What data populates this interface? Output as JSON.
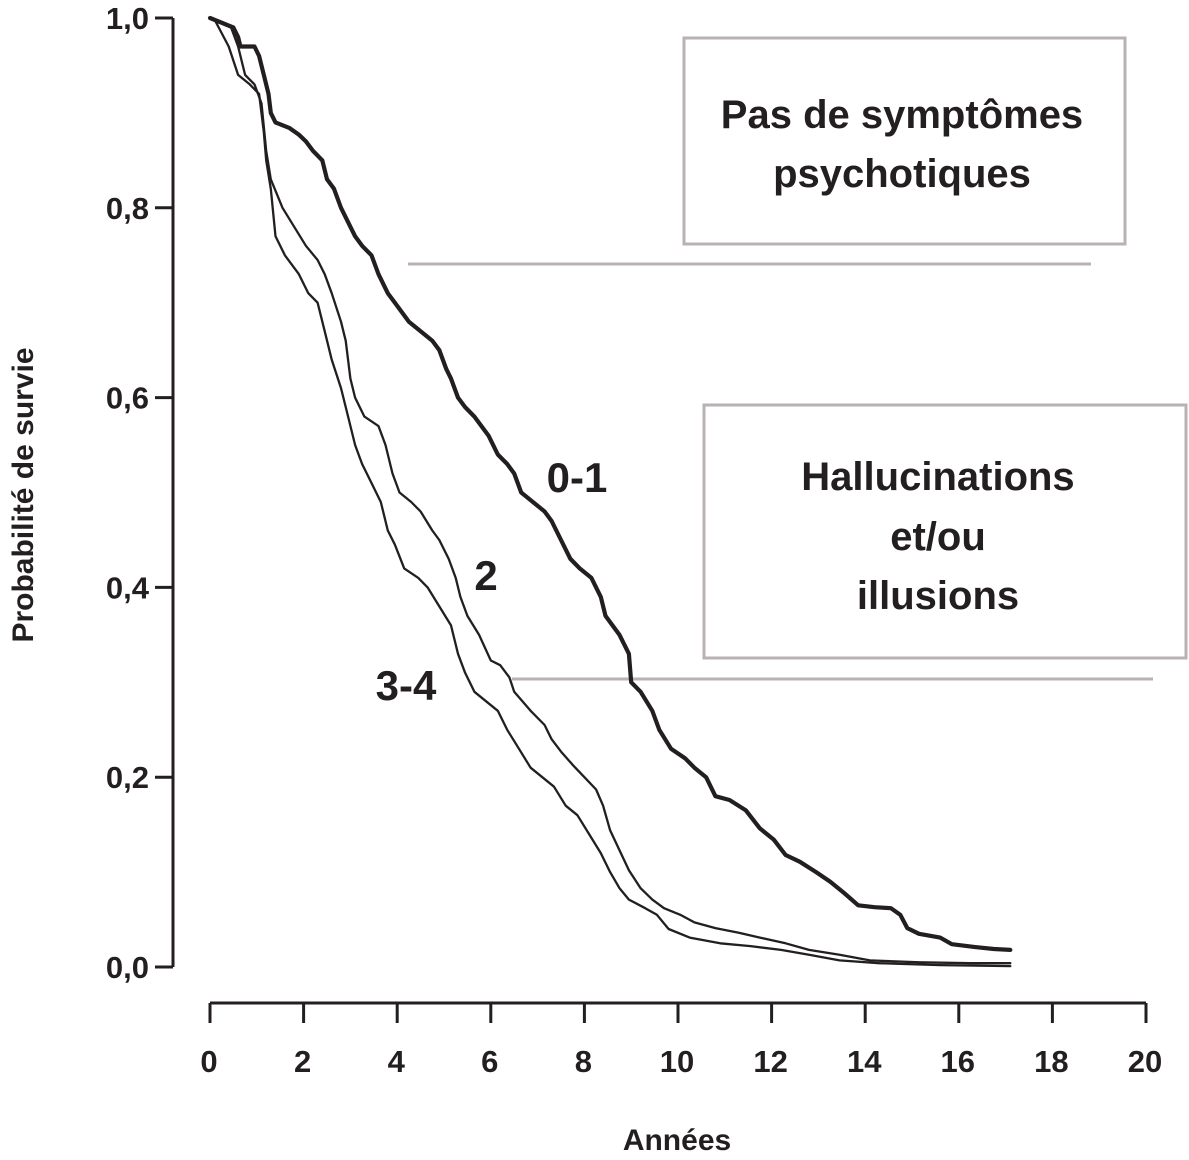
{
  "chart_data": {
    "type": "line",
    "xlabel": "Années",
    "ylabel": "Probabilité de survie",
    "xlim": [
      0,
      20
    ],
    "ylim": [
      0,
      1
    ],
    "x_ticks": [
      0,
      2,
      4,
      6,
      8,
      10,
      12,
      14,
      16,
      18,
      20
    ],
    "x_tick_labels": [
      "0",
      "2",
      "4",
      "6",
      "8",
      "10",
      "12",
      "14",
      "16",
      "18",
      "20"
    ],
    "y_ticks": [
      0,
      0.2,
      0.4,
      0.6,
      0.8,
      1.0
    ],
    "y_tick_labels": [
      "0,0",
      "0,2",
      "0,4",
      "0,6",
      "0,8",
      "1,0"
    ],
    "grid": false,
    "colors": {
      "curves": "#231f20",
      "annotation_frames": "#b9b1b6"
    },
    "series": [
      {
        "name": "0-1",
        "points": [
          [
            0,
            1.0
          ],
          [
            0.5,
            0.99
          ],
          [
            0.6,
            0.98
          ],
          [
            0.65,
            0.97
          ],
          [
            0.95,
            0.97
          ],
          [
            1.05,
            0.96
          ],
          [
            1.15,
            0.94
          ],
          [
            1.25,
            0.92
          ],
          [
            1.3,
            0.9
          ],
          [
            1.4,
            0.89
          ],
          [
            1.7,
            0.884
          ],
          [
            1.9,
            0.877
          ],
          [
            2.05,
            0.87
          ],
          [
            2.2,
            0.86
          ],
          [
            2.4,
            0.85
          ],
          [
            2.5,
            0.83
          ],
          [
            2.65,
            0.82
          ],
          [
            2.8,
            0.8
          ],
          [
            3.0,
            0.78
          ],
          [
            3.1,
            0.77
          ],
          [
            3.25,
            0.76
          ],
          [
            3.45,
            0.75
          ],
          [
            3.6,
            0.73
          ],
          [
            3.8,
            0.71
          ],
          [
            3.95,
            0.7
          ],
          [
            4.1,
            0.69
          ],
          [
            4.25,
            0.68
          ],
          [
            4.5,
            0.67
          ],
          [
            4.75,
            0.66
          ],
          [
            4.9,
            0.65
          ],
          [
            5.05,
            0.63
          ],
          [
            5.15,
            0.62
          ],
          [
            5.3,
            0.6
          ],
          [
            5.45,
            0.59
          ],
          [
            5.65,
            0.58
          ],
          [
            5.95,
            0.56
          ],
          [
            6.15,
            0.54
          ],
          [
            6.35,
            0.53
          ],
          [
            6.5,
            0.52
          ],
          [
            6.65,
            0.5
          ],
          [
            6.9,
            0.49
          ],
          [
            7.15,
            0.48
          ],
          [
            7.3,
            0.47
          ],
          [
            7.5,
            0.45
          ],
          [
            7.7,
            0.43
          ],
          [
            7.9,
            0.42
          ],
          [
            8.15,
            0.41
          ],
          [
            8.35,
            0.39
          ],
          [
            8.45,
            0.37
          ],
          [
            8.6,
            0.36
          ],
          [
            8.75,
            0.35
          ],
          [
            8.95,
            0.33
          ],
          [
            9.0,
            0.3
          ],
          [
            9.2,
            0.29
          ],
          [
            9.45,
            0.27
          ],
          [
            9.6,
            0.25
          ],
          [
            9.85,
            0.23
          ],
          [
            10.15,
            0.22
          ],
          [
            10.35,
            0.21
          ],
          [
            10.6,
            0.2
          ],
          [
            10.8,
            0.18
          ],
          [
            11.1,
            0.176
          ],
          [
            11.45,
            0.165
          ],
          [
            11.75,
            0.146
          ],
          [
            12.05,
            0.134
          ],
          [
            12.3,
            0.118
          ],
          [
            12.6,
            0.111
          ],
          [
            12.95,
            0.1
          ],
          [
            13.25,
            0.09
          ],
          [
            13.55,
            0.078
          ],
          [
            13.85,
            0.065
          ],
          [
            14.2,
            0.063
          ],
          [
            14.55,
            0.062
          ],
          [
            14.75,
            0.055
          ],
          [
            14.9,
            0.041
          ],
          [
            15.15,
            0.035
          ],
          [
            15.6,
            0.031
          ],
          [
            15.85,
            0.024
          ],
          [
            16.35,
            0.021
          ],
          [
            16.75,
            0.019
          ],
          [
            17.1,
            0.018
          ]
        ]
      },
      {
        "name": "2",
        "points": [
          [
            0,
            1.0
          ],
          [
            0.45,
            0.99
          ],
          [
            0.6,
            0.97
          ],
          [
            0.75,
            0.94
          ],
          [
            0.95,
            0.93
          ],
          [
            1.1,
            0.91
          ],
          [
            1.2,
            0.86
          ],
          [
            1.3,
            0.83
          ],
          [
            1.55,
            0.8
          ],
          [
            1.8,
            0.78
          ],
          [
            2.05,
            0.76
          ],
          [
            2.3,
            0.745
          ],
          [
            2.45,
            0.73
          ],
          [
            2.6,
            0.71
          ],
          [
            2.8,
            0.68
          ],
          [
            2.9,
            0.66
          ],
          [
            3.0,
            0.62
          ],
          [
            3.1,
            0.6
          ],
          [
            3.3,
            0.58
          ],
          [
            3.6,
            0.57
          ],
          [
            3.75,
            0.55
          ],
          [
            3.9,
            0.52
          ],
          [
            4.05,
            0.5
          ],
          [
            4.3,
            0.49
          ],
          [
            4.5,
            0.48
          ],
          [
            4.75,
            0.46
          ],
          [
            4.9,
            0.45
          ],
          [
            5.1,
            0.43
          ],
          [
            5.25,
            0.41
          ],
          [
            5.35,
            0.39
          ],
          [
            5.5,
            0.37
          ],
          [
            5.75,
            0.35
          ],
          [
            6.0,
            0.323
          ],
          [
            6.2,
            0.318
          ],
          [
            6.4,
            0.305
          ],
          [
            6.5,
            0.29
          ],
          [
            6.85,
            0.27
          ],
          [
            7.15,
            0.255
          ],
          [
            7.3,
            0.24
          ],
          [
            7.5,
            0.227
          ],
          [
            7.75,
            0.213
          ],
          [
            8.0,
            0.2
          ],
          [
            8.25,
            0.187
          ],
          [
            8.4,
            0.17
          ],
          [
            8.55,
            0.144
          ],
          [
            8.75,
            0.123
          ],
          [
            8.95,
            0.102
          ],
          [
            9.2,
            0.083
          ],
          [
            9.45,
            0.071
          ],
          [
            9.7,
            0.062
          ],
          [
            10.05,
            0.055
          ],
          [
            10.35,
            0.047
          ],
          [
            10.8,
            0.041
          ],
          [
            11.3,
            0.036
          ],
          [
            11.75,
            0.031
          ],
          [
            12.3,
            0.025
          ],
          [
            12.8,
            0.018
          ],
          [
            13.45,
            0.013
          ],
          [
            14.1,
            0.007
          ],
          [
            15.15,
            0.005
          ],
          [
            16.25,
            0.004
          ],
          [
            17.1,
            0.004
          ]
        ]
      },
      {
        "name": "3-4",
        "points": [
          [
            0,
            1.0
          ],
          [
            0.1,
            0.998
          ],
          [
            0.4,
            0.97
          ],
          [
            0.6,
            0.94
          ],
          [
            0.85,
            0.93
          ],
          [
            1.05,
            0.92
          ],
          [
            1.15,
            0.88
          ],
          [
            1.2,
            0.85
          ],
          [
            1.3,
            0.82
          ],
          [
            1.4,
            0.77
          ],
          [
            1.6,
            0.75
          ],
          [
            1.9,
            0.73
          ],
          [
            2.1,
            0.71
          ],
          [
            2.3,
            0.7
          ],
          [
            2.45,
            0.67
          ],
          [
            2.6,
            0.64
          ],
          [
            2.8,
            0.61
          ],
          [
            2.95,
            0.58
          ],
          [
            3.1,
            0.55
          ],
          [
            3.25,
            0.53
          ],
          [
            3.45,
            0.51
          ],
          [
            3.65,
            0.49
          ],
          [
            3.8,
            0.46
          ],
          [
            3.95,
            0.445
          ],
          [
            4.15,
            0.42
          ],
          [
            4.45,
            0.41
          ],
          [
            4.65,
            0.4
          ],
          [
            4.9,
            0.38
          ],
          [
            5.15,
            0.36
          ],
          [
            5.3,
            0.33
          ],
          [
            5.45,
            0.31
          ],
          [
            5.65,
            0.29
          ],
          [
            5.9,
            0.28
          ],
          [
            6.15,
            0.27
          ],
          [
            6.35,
            0.25
          ],
          [
            6.6,
            0.23
          ],
          [
            6.85,
            0.21
          ],
          [
            7.1,
            0.2
          ],
          [
            7.35,
            0.19
          ],
          [
            7.6,
            0.17
          ],
          [
            7.85,
            0.16
          ],
          [
            8.1,
            0.14
          ],
          [
            8.35,
            0.12
          ],
          [
            8.55,
            0.1
          ],
          [
            8.75,
            0.083
          ],
          [
            8.95,
            0.071
          ],
          [
            9.3,
            0.062
          ],
          [
            9.55,
            0.055
          ],
          [
            9.8,
            0.04
          ],
          [
            10.25,
            0.031
          ],
          [
            10.9,
            0.025
          ],
          [
            11.55,
            0.022
          ],
          [
            12.2,
            0.018
          ],
          [
            12.8,
            0.013
          ],
          [
            13.45,
            0.007
          ],
          [
            14.3,
            0.004
          ],
          [
            15.6,
            0.002
          ],
          [
            17.1,
            0.001
          ]
        ]
      }
    ],
    "annotations": [
      {
        "text_lines": [
          "Pas de symptômes",
          "psychotiques"
        ]
      },
      {
        "text_lines": [
          "Hallucinations",
          "et/ou",
          "illusions"
        ]
      }
    ]
  }
}
